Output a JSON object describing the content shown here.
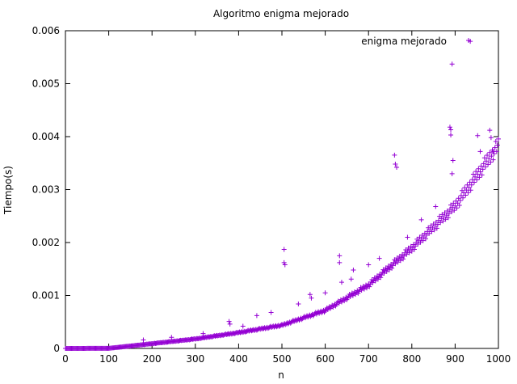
{
  "chart_data": {
    "type": "scatter",
    "title": "Algoritmo enigma mejorado",
    "xlabel": "n",
    "ylabel": "Tiempo(s)",
    "xlim": [
      0,
      1000
    ],
    "ylim": [
      0,
      0.006
    ],
    "xticks": [
      "0",
      "100",
      "200",
      "300",
      "400",
      "500",
      "600",
      "700",
      "800",
      "900",
      "1000"
    ],
    "yticks": [
      "0",
      "0.001",
      "0.002",
      "0.003",
      "0.004",
      "0.005",
      "0.006"
    ],
    "grid": false,
    "legend_position": "top-right",
    "marker": "plus",
    "series": [
      {
        "name": "enigma mejorado",
        "color": "#9400d3",
        "trend": {
          "description": "main band y ≈ 0.00385 * (n/1000)^3.2",
          "samples": [
            [
              0,
              0.0
            ],
            [
              100,
              2e-06
            ],
            [
              200,
              9e-05
            ],
            [
              300,
              0.00018
            ],
            [
              400,
              0.0003
            ],
            [
              500,
              0.00044
            ],
            [
              600,
              0.00072
            ],
            [
              700,
              0.0012
            ],
            [
              800,
              0.0019
            ],
            [
              900,
              0.0027
            ],
            [
              1000,
              0.00385
            ]
          ]
        },
        "outliers": [
          [
            180,
            0.00016
          ],
          [
            245,
            0.00021
          ],
          [
            318,
            0.00028
          ],
          [
            378,
            0.00051
          ],
          [
            380,
            0.00046
          ],
          [
            410,
            0.00042
          ],
          [
            442,
            0.00062
          ],
          [
            475,
            0.00068
          ],
          [
            505,
            0.00187
          ],
          [
            505,
            0.00162
          ],
          [
            507,
            0.00158
          ],
          [
            538,
            0.00084
          ],
          [
            565,
            0.00102
          ],
          [
            568,
            0.00095
          ],
          [
            600,
            0.00105
          ],
          [
            633,
            0.00175
          ],
          [
            633,
            0.00162
          ],
          [
            638,
            0.00125
          ],
          [
            660,
            0.00131
          ],
          [
            665,
            0.00148
          ],
          [
            700,
            0.00158
          ],
          [
            725,
            0.0017
          ],
          [
            760,
            0.00365
          ],
          [
            762,
            0.00348
          ],
          [
            765,
            0.00342
          ],
          [
            790,
            0.0021
          ],
          [
            822,
            0.00243
          ],
          [
            855,
            0.00268
          ],
          [
            888,
            0.00418
          ],
          [
            890,
            0.00413
          ],
          [
            890,
            0.00403
          ],
          [
            893,
            0.00537
          ],
          [
            895,
            0.00355
          ],
          [
            893,
            0.0033
          ],
          [
            935,
            0.0058
          ],
          [
            952,
            0.00402
          ],
          [
            958,
            0.00372
          ],
          [
            980,
            0.00412
          ],
          [
            983,
            0.00398
          ],
          [
            988,
            0.00372
          ]
        ]
      }
    ]
  }
}
